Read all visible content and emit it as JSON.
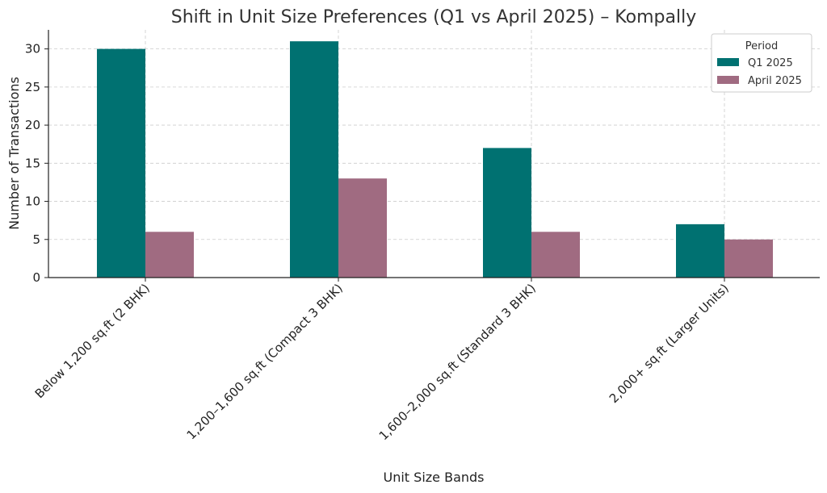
{
  "chart_data": {
    "type": "bar",
    "title": "Shift in Unit Size Preferences (Q1 vs April 2025) – Kompally",
    "xlabel": "Unit Size Bands",
    "ylabel": "Number of Transactions",
    "categories": [
      "Below 1,200 sq.ft (2 BHK)",
      "1,200–1,600 sq.ft (Compact 3 BHK)",
      "1,600–2,000 sq.ft (Standard 3 BHK)",
      "2,000+ sq.ft (Larger Units)"
    ],
    "series": [
      {
        "name": "Q1 2025",
        "values": [
          30,
          31,
          17,
          7
        ],
        "color": "#007171"
      },
      {
        "name": "April 2025",
        "values": [
          6,
          13,
          6,
          5
        ],
        "color": "#a06b81"
      }
    ],
    "ylim": [
      0,
      32.5
    ],
    "yticks": [
      0,
      5,
      10,
      15,
      20,
      25,
      30
    ],
    "grid": true,
    "legend": {
      "title": "Period",
      "placement": "top-right"
    }
  }
}
